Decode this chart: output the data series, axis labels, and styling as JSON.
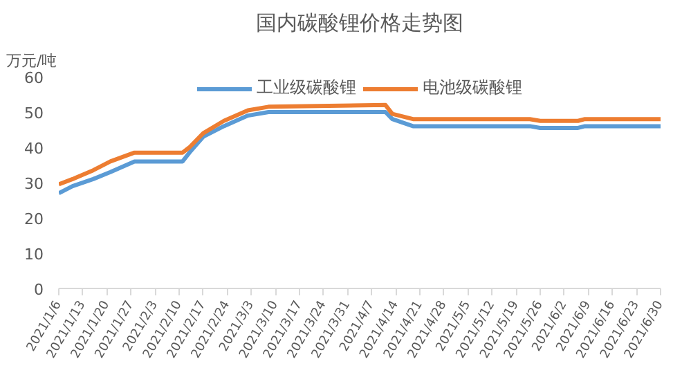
{
  "chart_data": {
    "type": "line",
    "title": "国内碳酸锂价格走势图",
    "ylabel": "万元/吨",
    "x": [
      "2021-01-06",
      "2021-01-10",
      "2021-01-16",
      "2021-01-21",
      "2021-01-28",
      "2021-02-11",
      "2021-02-13",
      "2021-02-17",
      "2021-02-23",
      "2021-03-02",
      "2021-03-08",
      "2021-04-11",
      "2021-04-13",
      "2021-04-19",
      "2021-05-23",
      "2021-05-26",
      "2021-06-06",
      "2021-06-08",
      "2021-06-30"
    ],
    "series": [
      {
        "name": "工业级碳酸锂",
        "color": "#5b9bd5",
        "values": [
          27,
          29,
          31,
          33,
          36,
          36,
          38.5,
          43,
          46,
          49,
          50,
          50,
          48,
          46,
          46,
          45.5,
          45.5,
          46,
          46
        ]
      },
      {
        "name": "电池级碳酸锂",
        "color": "#ed7d31",
        "values": [
          29.5,
          31,
          33.5,
          36,
          38.5,
          38.5,
          40,
          44,
          47.5,
          50.5,
          51.5,
          52,
          49.5,
          48,
          48,
          47.5,
          47.5,
          48,
          48
        ]
      }
    ],
    "xlim": [
      "2021-01-06",
      "2021-06-30"
    ],
    "xticks": [
      {
        "value": "2021-01-06",
        "label": "2021/1/6"
      },
      {
        "value": "2021-01-13",
        "label": "2021/1/13"
      },
      {
        "value": "2021-01-20",
        "label": "2021/1/20"
      },
      {
        "value": "2021-01-27",
        "label": "2021/1/27"
      },
      {
        "value": "2021-02-03",
        "label": "2021/2/3"
      },
      {
        "value": "2021-02-10",
        "label": "2021/2/10"
      },
      {
        "value": "2021-02-17",
        "label": "2021/2/17"
      },
      {
        "value": "2021-02-24",
        "label": "2021/2/24"
      },
      {
        "value": "2021-03-03",
        "label": "2021/3/3"
      },
      {
        "value": "2021-03-10",
        "label": "2021/3/10"
      },
      {
        "value": "2021-03-17",
        "label": "2021/3/17"
      },
      {
        "value": "2021-03-24",
        "label": "2021/3/24"
      },
      {
        "value": "2021-03-31",
        "label": "2021/3/31"
      },
      {
        "value": "2021-04-07",
        "label": "2021/4/7"
      },
      {
        "value": "2021-04-14",
        "label": "2021/4/14"
      },
      {
        "value": "2021-04-21",
        "label": "2021/4/21"
      },
      {
        "value": "2021-04-28",
        "label": "2021/4/28"
      },
      {
        "value": "2021-05-05",
        "label": "2021/5/5"
      },
      {
        "value": "2021-05-12",
        "label": "2021/5/12"
      },
      {
        "value": "2021-05-19",
        "label": "2021/5/19"
      },
      {
        "value": "2021-05-26",
        "label": "2021/5/26"
      },
      {
        "value": "2021-06-02",
        "label": "2021/6/2"
      },
      {
        "value": "2021-06-09",
        "label": "2021/6/9"
      },
      {
        "value": "2021-06-16",
        "label": "2021/6/16"
      },
      {
        "value": "2021-06-23",
        "label": "2021/6/23"
      },
      {
        "value": "2021-06-30",
        "label": "2021/6/30"
      }
    ],
    "ylim": [
      0,
      60
    ],
    "yticks": [
      0,
      10,
      20,
      30,
      40,
      50,
      60
    ],
    "grid": false,
    "legend": "top",
    "marker": "none",
    "line_style": "solid"
  }
}
